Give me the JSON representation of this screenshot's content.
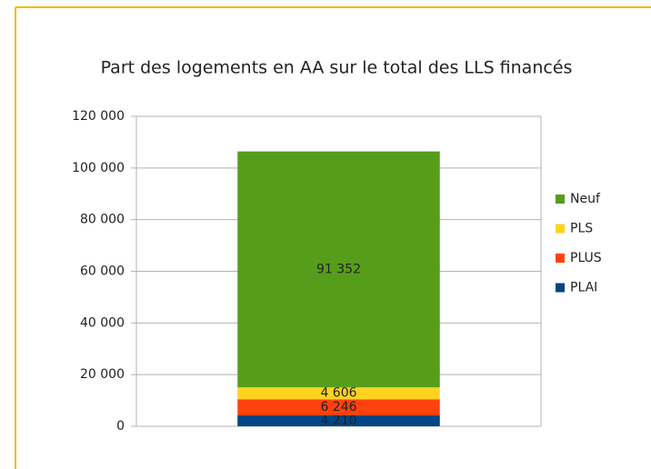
{
  "chart_data": {
    "type": "stacked_bar",
    "title": "Part des logements en AA sur le total des LLS financés",
    "categories": [
      null
    ],
    "series": [
      {
        "name": "PLAI",
        "color": "#004586",
        "values": [
          4210
        ],
        "value_labels": [
          "4 210"
        ]
      },
      {
        "name": "PLUS",
        "color": "#ff420e",
        "values": [
          6246
        ],
        "value_labels": [
          "6 246"
        ]
      },
      {
        "name": "PLS",
        "color": "#ffd320",
        "values": [
          4606
        ],
        "value_labels": [
          "4 606"
        ]
      },
      {
        "name": "Neuf",
        "color": "#579d1c",
        "values": [
          91352
        ],
        "value_labels": [
          "91 352"
        ]
      }
    ],
    "ylim": [
      0,
      120000
    ],
    "yticks": [
      0,
      {
        "value": 20000,
        "label": "20 000"
      },
      {
        "value": 40000,
        "label": "40 000"
      },
      {
        "value": 60000,
        "label": "60 000"
      },
      {
        "value": 80000,
        "label": "80 000"
      },
      {
        "value": 100000,
        "label": "100 000"
      },
      {
        "value": 120000,
        "label": "120 000"
      }
    ],
    "grid": true,
    "legend": "right"
  }
}
